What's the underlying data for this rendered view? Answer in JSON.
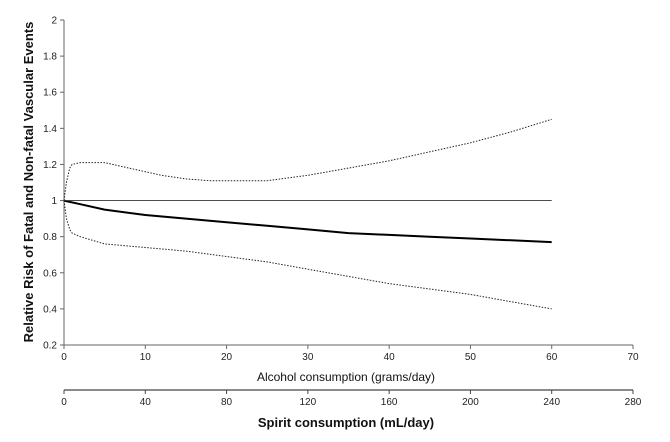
{
  "chart_data": {
    "type": "line",
    "ylabel": "Relative Risk of Fatal and Non-fatal Vascular Events",
    "xlabel": "Alcohol consumption (grams/day)",
    "x2label": "Spirit consumption (mL/day)",
    "xlim": [
      0,
      70
    ],
    "ylim": [
      0.2,
      2
    ],
    "x2lim": [
      0,
      280
    ],
    "x_ticks": [
      0,
      10,
      20,
      30,
      40,
      50,
      60,
      70
    ],
    "y_ticks": [
      0.2,
      0.4,
      0.6,
      0.8,
      1,
      1.2,
      1.4,
      1.6,
      1.8,
      2
    ],
    "x2_ticks": [
      0,
      40,
      80,
      120,
      160,
      200,
      240,
      280
    ],
    "grid": false,
    "series": [
      {
        "style": "solid-bold",
        "x": [
          0,
          2,
          5,
          10,
          15,
          20,
          25,
          30,
          35,
          40,
          45,
          50,
          55,
          60
        ],
        "y": [
          1.0,
          0.98,
          0.95,
          0.92,
          0.9,
          0.88,
          0.86,
          0.84,
          0.82,
          0.81,
          0.8,
          0.79,
          0.78,
          0.77
        ]
      },
      {
        "style": "dotted",
        "x": [
          0,
          0.3,
          0.7,
          1,
          2,
          5,
          8,
          10,
          12,
          15,
          18,
          20,
          25,
          30,
          35,
          40,
          45,
          50,
          55,
          60
        ],
        "y": [
          1.0,
          1.1,
          1.18,
          1.2,
          1.21,
          1.21,
          1.18,
          1.16,
          1.14,
          1.12,
          1.11,
          1.11,
          1.11,
          1.14,
          1.18,
          1.22,
          1.27,
          1.32,
          1.38,
          1.45
        ]
      },
      {
        "style": "dotted",
        "x": [
          0,
          0.3,
          0.7,
          1,
          2,
          5,
          10,
          15,
          20,
          25,
          30,
          35,
          40,
          45,
          50,
          55,
          60
        ],
        "y": [
          1.0,
          0.9,
          0.84,
          0.82,
          0.8,
          0.76,
          0.74,
          0.72,
          0.69,
          0.66,
          0.62,
          0.58,
          0.54,
          0.51,
          0.48,
          0.44,
          0.4
        ]
      },
      {
        "style": "reference",
        "x": [
          0,
          60
        ],
        "y": [
          1,
          1
        ]
      }
    ]
  }
}
